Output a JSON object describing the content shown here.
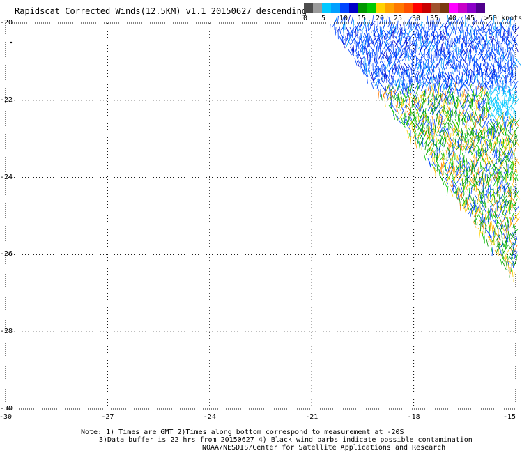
{
  "title": "Rapidscat Corrected Winds(12.5KM) v1.1 20150627 descending",
  "colorbar": {
    "colors": [
      "#4d4d4d",
      "#9b9b9b",
      "#00c8ff",
      "#00a0ff",
      "#0046ff",
      "#0000c8",
      "#009600",
      "#00c800",
      "#ffd200",
      "#ffa000",
      "#ff7800",
      "#ff5000",
      "#ff0000",
      "#c80000",
      "#a0522d",
      "#7a3a10",
      "#ff00ff",
      "#c800c8",
      "#8c00c8",
      "#50008c"
    ],
    "labels": [
      "0",
      "5",
      "10",
      "15",
      "20",
      "25",
      "30",
      "35",
      "40",
      "45",
      ">50 knots"
    ]
  },
  "axes": {
    "y_ticks": [
      "-20",
      "-22",
      "-24",
      "-26",
      "-28",
      "-30"
    ],
    "x_ticks": [
      "-30",
      "-27",
      "-24",
      "-21",
      "-18",
      "-15"
    ]
  },
  "notes": [
    "Note: 1) Times are GMT 2)Times along bottom correspond to measurement at -20S",
    "3)Data buffer is 22 hrs from 20150627 4) Black wind barbs indicate possible contamination",
    "NOAA/NESDIS/Center for Satellite Applications and Research"
  ]
}
